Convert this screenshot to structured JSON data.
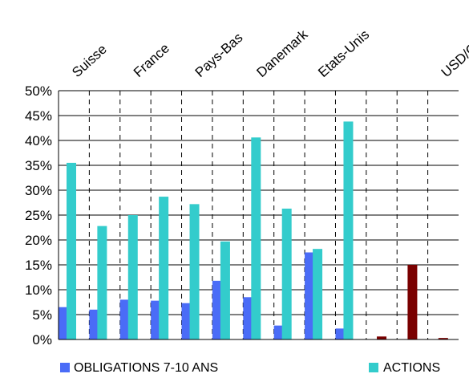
{
  "chart_data": {
    "type": "bar",
    "title": "",
    "xlabel": "",
    "ylabel": "",
    "categories": [
      "Suisse",
      "",
      "France",
      "",
      "Pays-Bas",
      "",
      "Danemark",
      "",
      "Etats-Unis",
      "",
      "",
      "",
      "USD/CHF"
    ],
    "series": [
      {
        "name": "OBLIGATIONS 7-10 ANS",
        "color": "#4a6cf7",
        "values": [
          6.5,
          6.0,
          8.0,
          7.8,
          7.3,
          11.8,
          8.5,
          2.8,
          17.5,
          2.2,
          null,
          null,
          null
        ]
      },
      {
        "name": "ACTIONS",
        "color": "#33cccc",
        "values": [
          35.5,
          22.8,
          25.0,
          28.7,
          27.2,
          19.7,
          40.6,
          26.3,
          18.2,
          43.8,
          null,
          null,
          null
        ]
      },
      {
        "name": "",
        "color": "#7a0000",
        "values": [
          null,
          null,
          null,
          null,
          null,
          null,
          null,
          null,
          null,
          null,
          0.6,
          15.0,
          0.3
        ]
      }
    ],
    "ylim": [
      0,
      50
    ],
    "yticks": [
      0,
      5,
      10,
      15,
      20,
      25,
      30,
      35,
      40,
      45,
      50
    ],
    "ytick_labels": [
      "0%",
      "5%",
      "10%",
      "15%",
      "20%",
      "25%",
      "30%",
      "35%",
      "40%",
      "45%",
      "50%"
    ],
    "grid": "dashed vertical separators, solid horizontal gridlines",
    "legend_position": "bottom"
  },
  "legend": {
    "items": [
      {
        "label": "OBLIGATIONS 7-10 ANS",
        "color": "#4a6cf7"
      },
      {
        "label": "ACTIONS",
        "color": "#33cccc"
      }
    ]
  }
}
